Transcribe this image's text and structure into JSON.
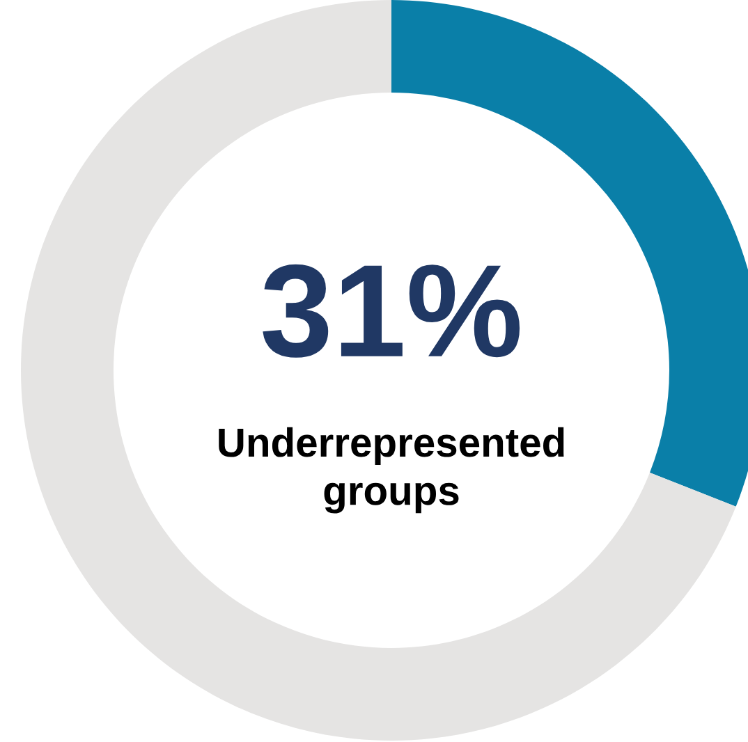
{
  "chart_data": {
    "type": "donut",
    "categories": [
      null,
      null
    ],
    "values": [
      31,
      69
    ],
    "colors": [
      "#0a7fa8",
      "#e5e4e3"
    ],
    "value_labels": [
      "31%",
      null
    ],
    "annotations": [
      "Underrepresented groups"
    ]
  }
}
